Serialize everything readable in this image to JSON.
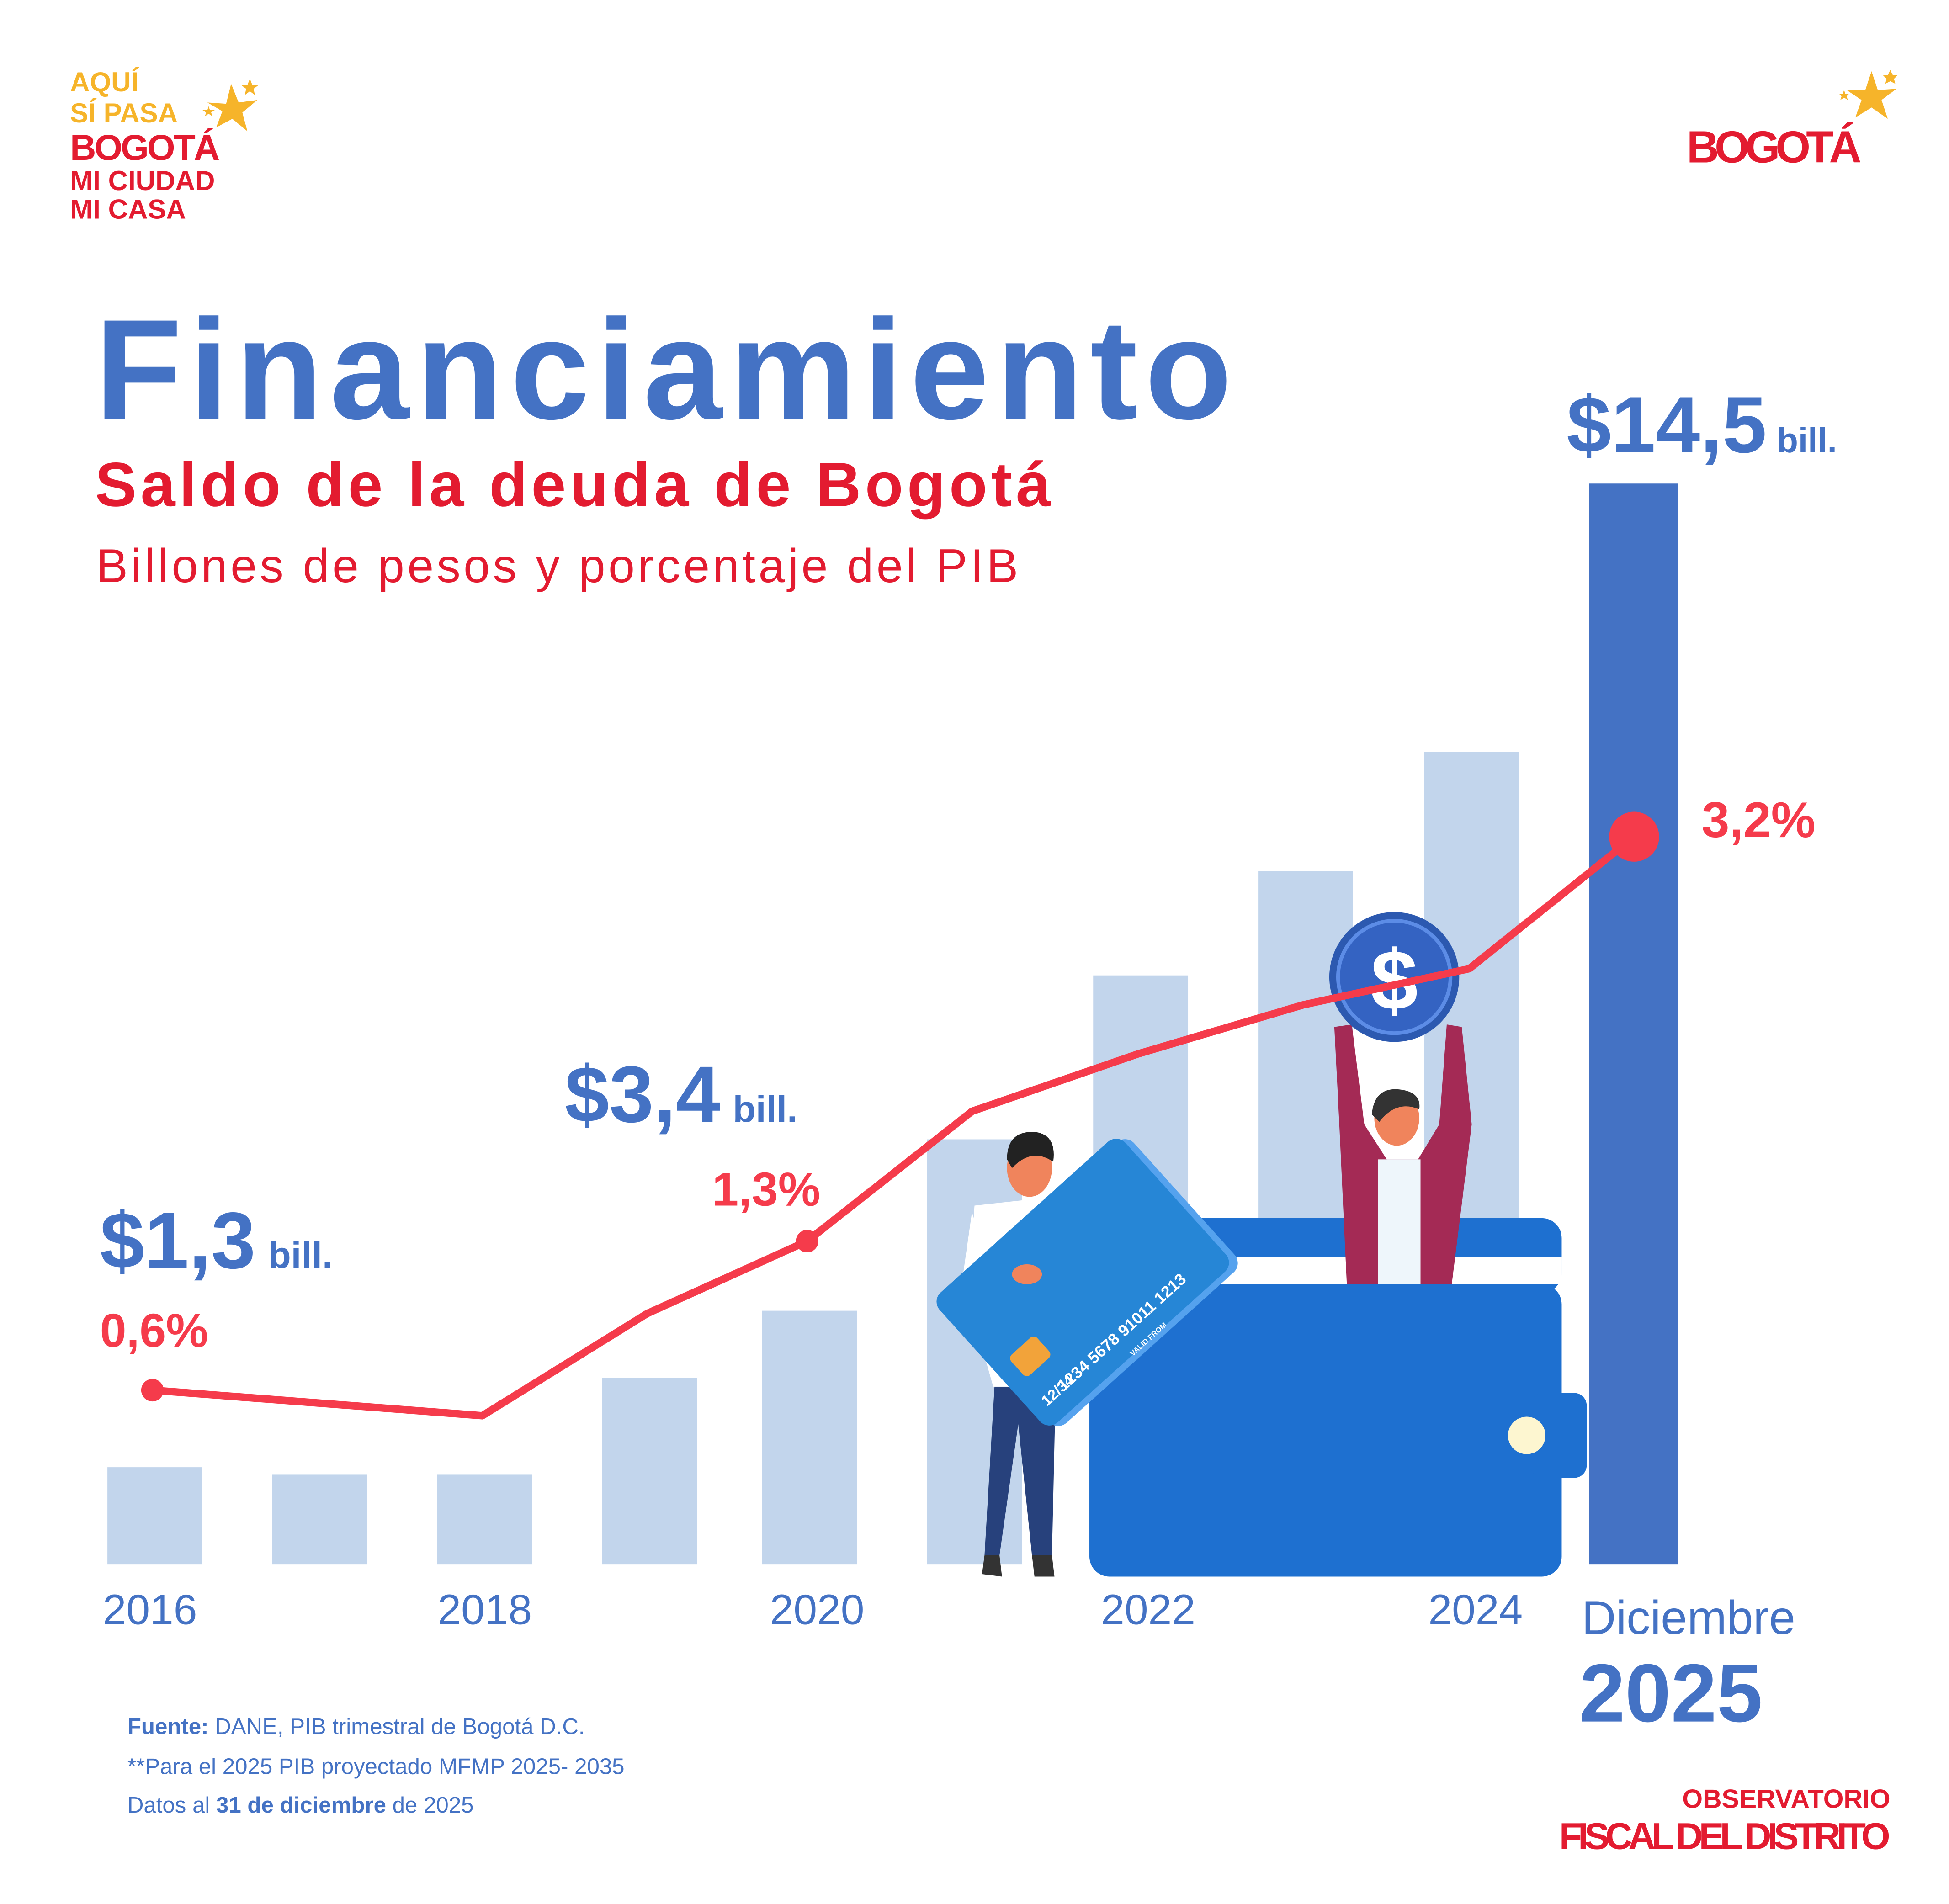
{
  "logo_left": {
    "line1": "AQUÍ",
    "line2": "SÍ PASA",
    "line3": "BOGOTÁ",
    "line4": "MI CIUDAD",
    "line5": "MI CASA"
  },
  "logo_right": {
    "text": "BOGOTÁ"
  },
  "header": {
    "title": "Financiamiento",
    "subtitle": "Saldo de la deuda de Bogotá",
    "description": "Billones de pesos y porcentaje del PIB"
  },
  "labels": {
    "v2016": "$1,3",
    "p2016": "0,6%",
    "v2020": "$3,4",
    "p2020": "1,3%",
    "v2025": "$14,5",
    "p2025": "3,2%",
    "unit": "bill.",
    "last_month": "Diciembre",
    "last_year": "2025"
  },
  "illustration": {
    "card_number": "1234 5678 91011 1213",
    "card_valid_label": "VALID FROM",
    "card_valid": "12/34",
    "coin_symbol": "$"
  },
  "footer": {
    "source_label": "Fuente:",
    "source_text": " DANE,  PIB trimestral de Bogotá D.C.",
    "note": "**Para el 2025 PIB  proyectado MFMP 2025- 2035",
    "date_prefix": "Datos al ",
    "date_bold": "31 de diciembre",
    "date_suffix": " de 2025"
  },
  "brand": {
    "line1": "OBSERVATORIO",
    "line2": "FISCAL DEL DISTRITO"
  },
  "colors": {
    "bar": "#C2D5EC",
    "bar_highlight": "#4472C4",
    "line": "#F53B4B",
    "title": "#4472C4",
    "subtitle": "#E31B30",
    "logo_yellow": "#F6B42A"
  },
  "chart_data": {
    "type": "bar+line",
    "title": "Saldo de la deuda de Bogotá",
    "subtitle": "Billones de pesos y porcentaje del PIB",
    "categories": [
      "2016",
      "2017",
      "2018",
      "2019",
      "2020",
      "2021",
      "2022",
      "2023",
      "2024",
      "2025"
    ],
    "x_tick_labels": [
      "2016",
      "2018",
      "2020",
      "2022",
      "2024"
    ],
    "series": [
      {
        "type": "bar",
        "values": [
          1.3,
          1.2,
          1.2,
          2.5,
          3.4,
          5.7,
          7.9,
          9.3,
          10.9,
          14.5
        ]
      },
      {
        "type": "line",
        "values": [
          0.6,
          0.54,
          0.48,
          0.96,
          1.3,
          1.91,
          2.18,
          2.41,
          2.58,
          3.2
        ]
      }
    ],
    "data_labels": [
      {
        "category": "2016",
        "bar": "$1,3 bill.",
        "line": "0,6%"
      },
      {
        "category": "2020",
        "bar": "$3,4 bill.",
        "line": "1,3%"
      },
      {
        "category": "2025",
        "bar": "$14,5 bill.",
        "line": "3,2%"
      }
    ],
    "bar_ylim": [
      0,
      14.5
    ],
    "grid": false,
    "legend": "none"
  }
}
